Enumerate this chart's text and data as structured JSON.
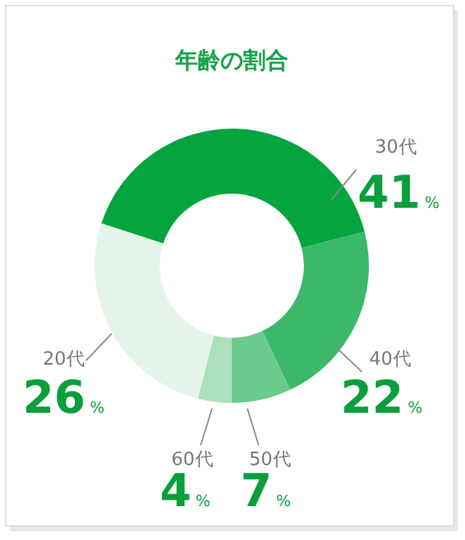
{
  "chart_data": {
    "type": "donut",
    "title": "年齢の割合",
    "categories": [
      "30代",
      "40代",
      "50代",
      "60代",
      "20代"
    ],
    "values": [
      41,
      22,
      7,
      4,
      26
    ],
    "value_labels": [
      "41%",
      "22%",
      "7%",
      "4%",
      "26%"
    ],
    "colors": [
      "#04a43f",
      "#3bb86a",
      "#6bca8d",
      "#acdfbe",
      "#e4f4e9"
    ]
  }
}
